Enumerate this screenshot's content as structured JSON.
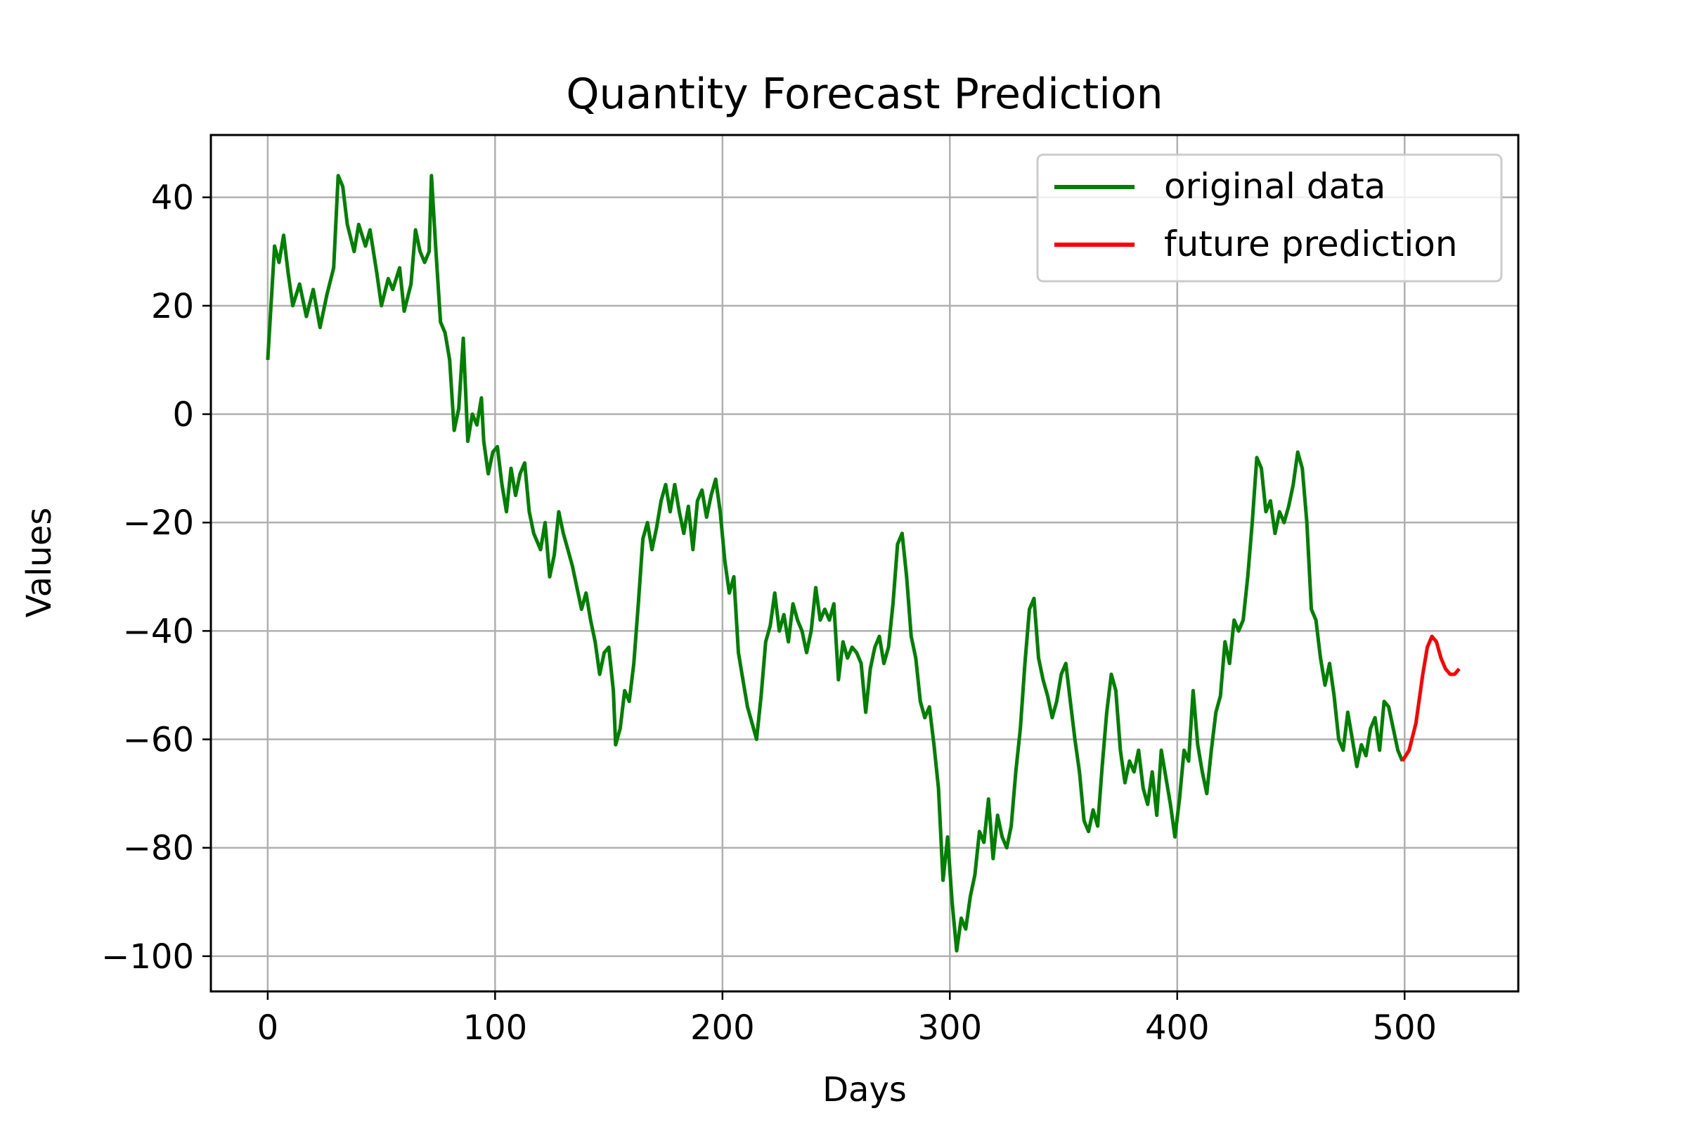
{
  "chart_data": {
    "type": "line",
    "title": "Quantity Forecast Prediction",
    "xlabel": "Days",
    "ylabel": "Values",
    "xlim": [
      -25,
      550
    ],
    "ylim": [
      -106.5,
      51.5
    ],
    "xticks": [
      0,
      100,
      200,
      300,
      400,
      500
    ],
    "yticks": [
      -100,
      -80,
      -60,
      -40,
      -20,
      0,
      20,
      40
    ],
    "grid": true,
    "legend_position": "top-right",
    "series": [
      {
        "name": "original data",
        "color": "#008000",
        "points": [
          [
            0,
            10
          ],
          [
            3,
            31
          ],
          [
            5,
            28
          ],
          [
            7,
            33
          ],
          [
            9,
            26
          ],
          [
            11,
            20
          ],
          [
            14,
            24
          ],
          [
            17,
            18
          ],
          [
            20,
            23
          ],
          [
            23,
            16
          ],
          [
            26,
            22
          ],
          [
            29,
            27
          ],
          [
            31,
            44
          ],
          [
            33,
            42
          ],
          [
            35,
            35
          ],
          [
            38,
            30
          ],
          [
            40,
            35
          ],
          [
            43,
            31
          ],
          [
            45,
            34
          ],
          [
            48,
            26
          ],
          [
            50,
            20
          ],
          [
            53,
            25
          ],
          [
            55,
            23
          ],
          [
            58,
            27
          ],
          [
            60,
            19
          ],
          [
            63,
            24
          ],
          [
            65,
            34
          ],
          [
            67,
            30
          ],
          [
            69,
            28
          ],
          [
            71,
            30
          ],
          [
            72,
            44
          ],
          [
            74,
            30
          ],
          [
            76,
            17
          ],
          [
            78,
            15
          ],
          [
            80,
            10
          ],
          [
            82,
            -3
          ],
          [
            84,
            1
          ],
          [
            86,
            14
          ],
          [
            88,
            -5
          ],
          [
            90,
            0
          ],
          [
            92,
            -2
          ],
          [
            94,
            3
          ],
          [
            95,
            -5
          ],
          [
            97,
            -11
          ],
          [
            99,
            -7
          ],
          [
            101,
            -6
          ],
          [
            103,
            -13
          ],
          [
            105,
            -18
          ],
          [
            107,
            -10
          ],
          [
            109,
            -15
          ],
          [
            111,
            -11
          ],
          [
            113,
            -9
          ],
          [
            115,
            -18
          ],
          [
            117,
            -22
          ],
          [
            120,
            -25
          ],
          [
            122,
            -20
          ],
          [
            124,
            -30
          ],
          [
            126,
            -26
          ],
          [
            128,
            -18
          ],
          [
            130,
            -22
          ],
          [
            132,
            -25
          ],
          [
            134,
            -28
          ],
          [
            136,
            -32
          ],
          [
            138,
            -36
          ],
          [
            140,
            -33
          ],
          [
            142,
            -38
          ],
          [
            144,
            -42
          ],
          [
            146,
            -48
          ],
          [
            148,
            -44
          ],
          [
            150,
            -43
          ],
          [
            152,
            -51
          ],
          [
            153,
            -61
          ],
          [
            155,
            -58
          ],
          [
            157,
            -51
          ],
          [
            159,
            -53
          ],
          [
            161,
            -46
          ],
          [
            163,
            -35
          ],
          [
            165,
            -23
          ],
          [
            167,
            -20
          ],
          [
            169,
            -25
          ],
          [
            171,
            -21
          ],
          [
            173,
            -16
          ],
          [
            175,
            -13
          ],
          [
            177,
            -18
          ],
          [
            179,
            -13
          ],
          [
            181,
            -18
          ],
          [
            183,
            -22
          ],
          [
            185,
            -17
          ],
          [
            187,
            -25
          ],
          [
            189,
            -16
          ],
          [
            191,
            -14
          ],
          [
            193,
            -19
          ],
          [
            195,
            -15
          ],
          [
            197,
            -12
          ],
          [
            199,
            -18
          ],
          [
            201,
            -27
          ],
          [
            203,
            -33
          ],
          [
            205,
            -30
          ],
          [
            207,
            -44
          ],
          [
            209,
            -49
          ],
          [
            211,
            -54
          ],
          [
            213,
            -57
          ],
          [
            215,
            -60
          ],
          [
            217,
            -52
          ],
          [
            219,
            -42
          ],
          [
            221,
            -39
          ],
          [
            223,
            -33
          ],
          [
            225,
            -40
          ],
          [
            227,
            -37
          ],
          [
            229,
            -42
          ],
          [
            231,
            -35
          ],
          [
            233,
            -38
          ],
          [
            235,
            -40
          ],
          [
            237,
            -44
          ],
          [
            239,
            -40
          ],
          [
            241,
            -32
          ],
          [
            243,
            -38
          ],
          [
            245,
            -36
          ],
          [
            247,
            -38
          ],
          [
            249,
            -35
          ],
          [
            251,
            -49
          ],
          [
            253,
            -42
          ],
          [
            255,
            -45
          ],
          [
            257,
            -43
          ],
          [
            259,
            -44
          ],
          [
            261,
            -46
          ],
          [
            263,
            -55
          ],
          [
            265,
            -47
          ],
          [
            267,
            -43
          ],
          [
            269,
            -41
          ],
          [
            271,
            -46
          ],
          [
            273,
            -43
          ],
          [
            275,
            -35
          ],
          [
            277,
            -24
          ],
          [
            279,
            -22
          ],
          [
            281,
            -30
          ],
          [
            283,
            -41
          ],
          [
            285,
            -45
          ],
          [
            287,
            -53
          ],
          [
            289,
            -56
          ],
          [
            291,
            -54
          ],
          [
            293,
            -61
          ],
          [
            295,
            -69
          ],
          [
            297,
            -86
          ],
          [
            299,
            -78
          ],
          [
            301,
            -90
          ],
          [
            303,
            -99
          ],
          [
            305,
            -93
          ],
          [
            307,
            -95
          ],
          [
            309,
            -89
          ],
          [
            311,
            -85
          ],
          [
            313,
            -77
          ],
          [
            315,
            -79
          ],
          [
            317,
            -71
          ],
          [
            319,
            -82
          ],
          [
            321,
            -74
          ],
          [
            323,
            -78
          ],
          [
            325,
            -80
          ],
          [
            327,
            -76
          ],
          [
            329,
            -66
          ],
          [
            331,
            -58
          ],
          [
            333,
            -46
          ],
          [
            335,
            -36
          ],
          [
            337,
            -34
          ],
          [
            339,
            -45
          ],
          [
            341,
            -49
          ],
          [
            343,
            -52
          ],
          [
            345,
            -56
          ],
          [
            347,
            -53
          ],
          [
            349,
            -48
          ],
          [
            351,
            -46
          ],
          [
            353,
            -53
          ],
          [
            355,
            -60
          ],
          [
            357,
            -66
          ],
          [
            359,
            -75
          ],
          [
            361,
            -77
          ],
          [
            363,
            -73
          ],
          [
            365,
            -76
          ],
          [
            367,
            -65
          ],
          [
            369,
            -55
          ],
          [
            371,
            -48
          ],
          [
            373,
            -51
          ],
          [
            375,
            -62
          ],
          [
            377,
            -68
          ],
          [
            379,
            -64
          ],
          [
            381,
            -66
          ],
          [
            383,
            -62
          ],
          [
            385,
            -69
          ],
          [
            387,
            -72
          ],
          [
            389,
            -66
          ],
          [
            391,
            -74
          ],
          [
            393,
            -62
          ],
          [
            395,
            -67
          ],
          [
            397,
            -72
          ],
          [
            399,
            -78
          ],
          [
            401,
            -71
          ],
          [
            403,
            -62
          ],
          [
            405,
            -64
          ],
          [
            407,
            -51
          ],
          [
            409,
            -61
          ],
          [
            411,
            -66
          ],
          [
            413,
            -70
          ],
          [
            415,
            -62
          ],
          [
            417,
            -55
          ],
          [
            419,
            -52
          ],
          [
            421,
            -42
          ],
          [
            423,
            -46
          ],
          [
            425,
            -38
          ],
          [
            427,
            -40
          ],
          [
            429,
            -38
          ],
          [
            431,
            -30
          ],
          [
            433,
            -20
          ],
          [
            435,
            -8
          ],
          [
            437,
            -10
          ],
          [
            439,
            -18
          ],
          [
            441,
            -16
          ],
          [
            443,
            -22
          ],
          [
            445,
            -18
          ],
          [
            447,
            -20
          ],
          [
            449,
            -17
          ],
          [
            451,
            -13
          ],
          [
            453,
            -7
          ],
          [
            455,
            -10
          ],
          [
            457,
            -20
          ],
          [
            459,
            -36
          ],
          [
            461,
            -38
          ],
          [
            463,
            -45
          ],
          [
            465,
            -50
          ],
          [
            467,
            -46
          ],
          [
            469,
            -52
          ],
          [
            471,
            -60
          ],
          [
            473,
            -62
          ],
          [
            475,
            -55
          ],
          [
            477,
            -60
          ],
          [
            479,
            -65
          ],
          [
            481,
            -61
          ],
          [
            483,
            -63
          ],
          [
            485,
            -58
          ],
          [
            487,
            -56
          ],
          [
            489,
            -62
          ],
          [
            491,
            -53
          ],
          [
            493,
            -54
          ],
          [
            495,
            -58
          ],
          [
            497,
            -62
          ],
          [
            499,
            -64
          ]
        ]
      },
      {
        "name": "future prediction",
        "color": "#ff0000",
        "points": [
          [
            499,
            -64
          ],
          [
            502,
            -62
          ],
          [
            505,
            -57
          ],
          [
            508,
            -48
          ],
          [
            510,
            -43
          ],
          [
            512,
            -41
          ],
          [
            514,
            -42
          ],
          [
            516,
            -45
          ],
          [
            518,
            -47
          ],
          [
            520,
            -48
          ],
          [
            522,
            -48
          ],
          [
            524,
            -47
          ]
        ]
      }
    ]
  }
}
